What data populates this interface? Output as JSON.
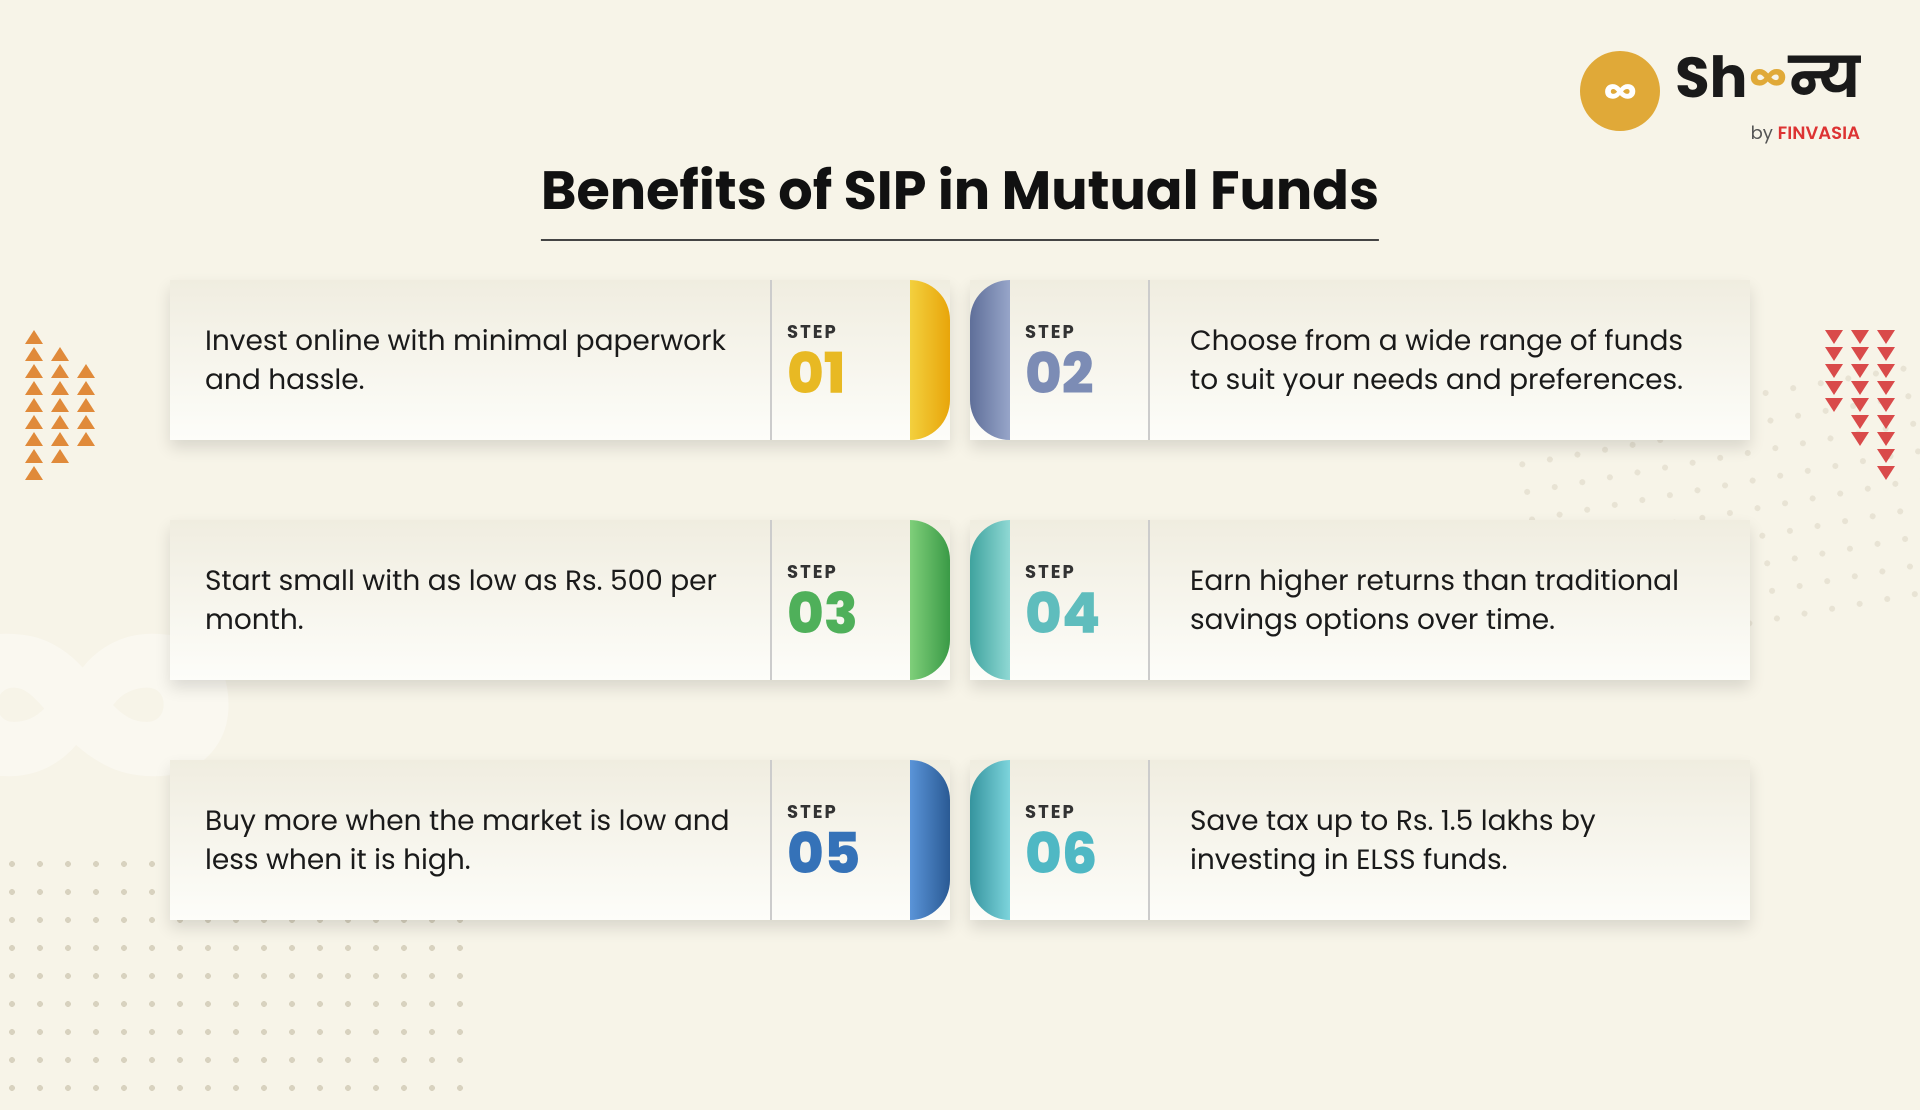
{
  "type": "infographic",
  "title": "Benefits of SIP in Mutual Funds",
  "brand": {
    "name_prefix": "Sh",
    "name_suffix": "न्य",
    "by_prefix": "by ",
    "by_brand": "FINVASIA",
    "badge_symbol": "∞",
    "infinity_symbol": "∞"
  },
  "step_label": "STEP",
  "steps": [
    {
      "num": "01",
      "text": "Invest online with minimal paperwork and hassle.",
      "color": "#e8b923",
      "tab_gradient": "linear-gradient(to right, #f3d03e, #e8a50a)"
    },
    {
      "num": "02",
      "text": "Choose from a wide range of funds to suit your needs and preferences.",
      "color": "#7c8cb5",
      "tab_gradient": "linear-gradient(to left, #97a5c9, #5f6f99)"
    },
    {
      "num": "03",
      "text": "Start small with as low as Rs. 500 per month.",
      "color": "#4fb05a",
      "tab_gradient": "linear-gradient(to right, #7fcf7a, #3a9a46)"
    },
    {
      "num": "04",
      "text": "Earn higher returns than traditional savings options over time.",
      "color": "#5fbdbd",
      "tab_gradient": "linear-gradient(to left, #8fd8d4, #3fa39e)"
    },
    {
      "num": "05",
      "text": "Buy more when the market is low and less when it is high.",
      "color": "#3572b8",
      "tab_gradient": "linear-gradient(to right, #5a94d8, #2a5a94)"
    },
    {
      "num": "06",
      "text": "Save tax up to Rs. 1.5 lakhs by investing in ELSS funds.",
      "color": "#4fb8c4",
      "tab_gradient": "linear-gradient(to left, #7dd4dc, #35949e)"
    }
  ],
  "decorations": {
    "left_triangle_color": "#e08a3a",
    "right_triangle_color": "#d94a4a",
    "watermark": "∞"
  },
  "layout": {
    "title_fontsize": 54,
    "card_fontsize": 28,
    "step_num_fontsize": 56,
    "background_color": "#f7f4e8"
  }
}
